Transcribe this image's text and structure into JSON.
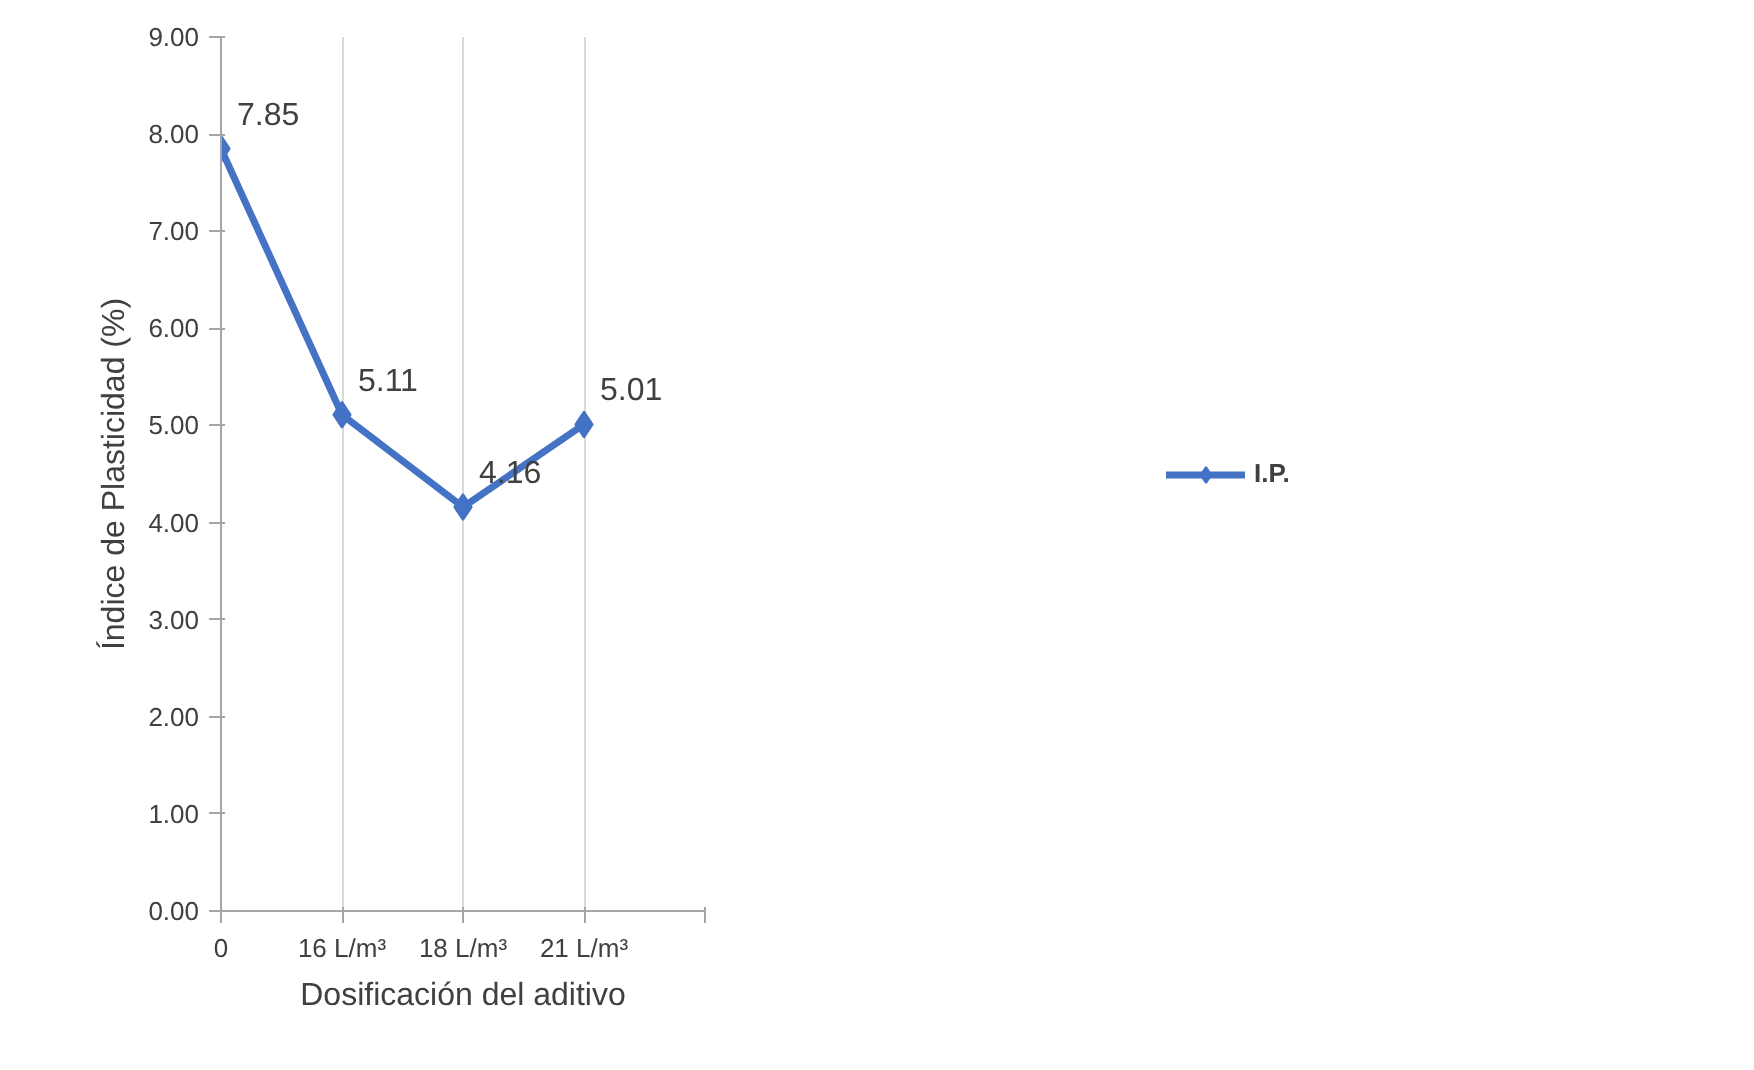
{
  "chart_data": {
    "type": "line",
    "xlabel": "Dosificación del aditivo",
    "ylabel": "Índice de Plasticidad (%)",
    "categories": [
      "0",
      "16 L/m³",
      "18 L/m³",
      "21 L/m³",
      null
    ],
    "series": [
      {
        "name": "I.P.",
        "color": "#4472c4",
        "values": [
          7.85,
          5.11,
          4.16,
          5.01,
          null
        ]
      }
    ],
    "ylim": [
      0,
      9
    ],
    "yticks": [
      {
        "value": 0,
        "label": "0.00"
      },
      {
        "value": 1,
        "label": "1.00"
      },
      {
        "value": 2,
        "label": "2.00"
      },
      {
        "value": 3,
        "label": "3.00"
      },
      {
        "value": 4,
        "label": "4.00"
      },
      {
        "value": 5,
        "label": "5.00"
      },
      {
        "value": 6,
        "label": "6.00"
      },
      {
        "value": 7,
        "label": "7.00"
      },
      {
        "value": 8,
        "label": "8.00"
      },
      {
        "value": 9,
        "label": "9.00"
      }
    ],
    "grid": "x",
    "legend": "right",
    "marker": "diamond",
    "line_style": "solid",
    "data_labels": true
  }
}
